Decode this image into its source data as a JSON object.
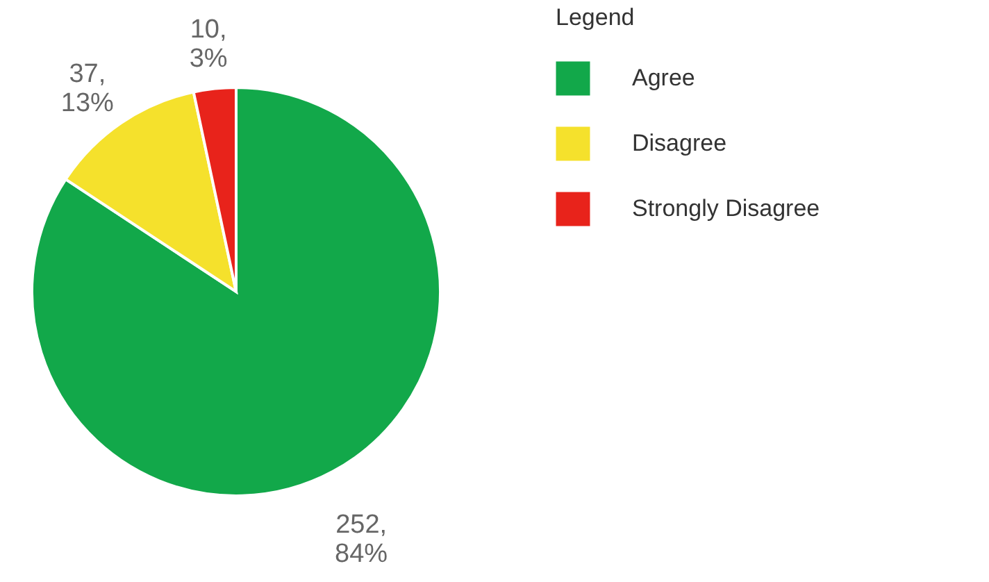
{
  "chart_data": {
    "type": "pie",
    "legend_title": "Legend",
    "categories": [
      "Agree",
      "Disagree",
      "Strongly Disagree"
    ],
    "values": [
      252,
      37,
      10
    ],
    "colors": [
      "#12a84a",
      "#f5e12c",
      "#e8231b"
    ],
    "value_labels": [
      "252,\n84%",
      "37,\n13%",
      "10,\n3%"
    ],
    "legend": "right"
  }
}
